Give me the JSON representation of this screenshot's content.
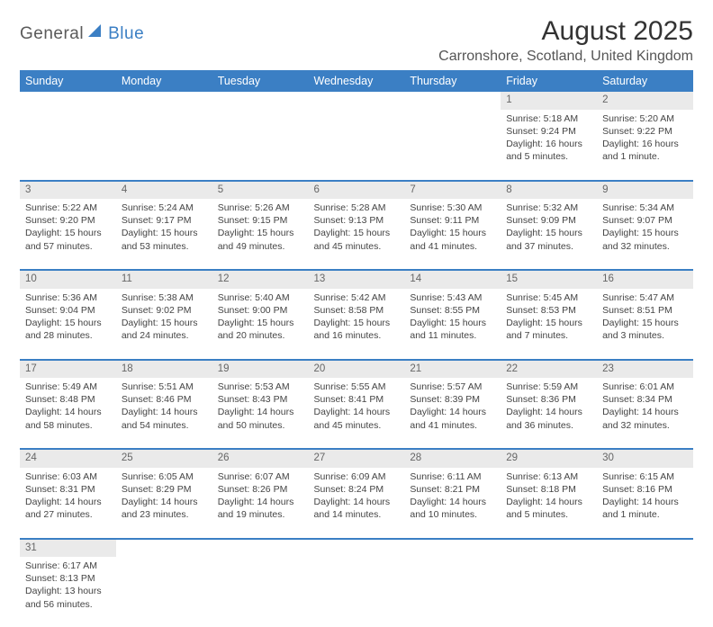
{
  "logo": {
    "text1": "General",
    "text2": "Blue"
  },
  "title": "August 2025",
  "location": "Carronshore, Scotland, United Kingdom",
  "colors": {
    "header_bg": "#3b7fc4",
    "header_text": "#ffffff",
    "daynum_bg": "#eaeaea",
    "row_divider": "#3b7fc4",
    "body_text": "#444444",
    "logo_gray": "#5a5a5a",
    "logo_blue": "#3b7fc4"
  },
  "typography": {
    "title_fontsize": 30,
    "location_fontsize": 16,
    "header_fontsize": 12.5,
    "daynum_fontsize": 11.5,
    "cell_fontsize": 10.5
  },
  "day_headers": [
    "Sunday",
    "Monday",
    "Tuesday",
    "Wednesday",
    "Thursday",
    "Friday",
    "Saturday"
  ],
  "weeks": [
    [
      null,
      null,
      null,
      null,
      null,
      {
        "n": "1",
        "sr": "Sunrise: 5:18 AM",
        "ss": "Sunset: 9:24 PM",
        "dl": "Daylight: 16 hours and 5 minutes."
      },
      {
        "n": "2",
        "sr": "Sunrise: 5:20 AM",
        "ss": "Sunset: 9:22 PM",
        "dl": "Daylight: 16 hours and 1 minute."
      }
    ],
    [
      {
        "n": "3",
        "sr": "Sunrise: 5:22 AM",
        "ss": "Sunset: 9:20 PM",
        "dl": "Daylight: 15 hours and 57 minutes."
      },
      {
        "n": "4",
        "sr": "Sunrise: 5:24 AM",
        "ss": "Sunset: 9:17 PM",
        "dl": "Daylight: 15 hours and 53 minutes."
      },
      {
        "n": "5",
        "sr": "Sunrise: 5:26 AM",
        "ss": "Sunset: 9:15 PM",
        "dl": "Daylight: 15 hours and 49 minutes."
      },
      {
        "n": "6",
        "sr": "Sunrise: 5:28 AM",
        "ss": "Sunset: 9:13 PM",
        "dl": "Daylight: 15 hours and 45 minutes."
      },
      {
        "n": "7",
        "sr": "Sunrise: 5:30 AM",
        "ss": "Sunset: 9:11 PM",
        "dl": "Daylight: 15 hours and 41 minutes."
      },
      {
        "n": "8",
        "sr": "Sunrise: 5:32 AM",
        "ss": "Sunset: 9:09 PM",
        "dl": "Daylight: 15 hours and 37 minutes."
      },
      {
        "n": "9",
        "sr": "Sunrise: 5:34 AM",
        "ss": "Sunset: 9:07 PM",
        "dl": "Daylight: 15 hours and 32 minutes."
      }
    ],
    [
      {
        "n": "10",
        "sr": "Sunrise: 5:36 AM",
        "ss": "Sunset: 9:04 PM",
        "dl": "Daylight: 15 hours and 28 minutes."
      },
      {
        "n": "11",
        "sr": "Sunrise: 5:38 AM",
        "ss": "Sunset: 9:02 PM",
        "dl": "Daylight: 15 hours and 24 minutes."
      },
      {
        "n": "12",
        "sr": "Sunrise: 5:40 AM",
        "ss": "Sunset: 9:00 PM",
        "dl": "Daylight: 15 hours and 20 minutes."
      },
      {
        "n": "13",
        "sr": "Sunrise: 5:42 AM",
        "ss": "Sunset: 8:58 PM",
        "dl": "Daylight: 15 hours and 16 minutes."
      },
      {
        "n": "14",
        "sr": "Sunrise: 5:43 AM",
        "ss": "Sunset: 8:55 PM",
        "dl": "Daylight: 15 hours and 11 minutes."
      },
      {
        "n": "15",
        "sr": "Sunrise: 5:45 AM",
        "ss": "Sunset: 8:53 PM",
        "dl": "Daylight: 15 hours and 7 minutes."
      },
      {
        "n": "16",
        "sr": "Sunrise: 5:47 AM",
        "ss": "Sunset: 8:51 PM",
        "dl": "Daylight: 15 hours and 3 minutes."
      }
    ],
    [
      {
        "n": "17",
        "sr": "Sunrise: 5:49 AM",
        "ss": "Sunset: 8:48 PM",
        "dl": "Daylight: 14 hours and 58 minutes."
      },
      {
        "n": "18",
        "sr": "Sunrise: 5:51 AM",
        "ss": "Sunset: 8:46 PM",
        "dl": "Daylight: 14 hours and 54 minutes."
      },
      {
        "n": "19",
        "sr": "Sunrise: 5:53 AM",
        "ss": "Sunset: 8:43 PM",
        "dl": "Daylight: 14 hours and 50 minutes."
      },
      {
        "n": "20",
        "sr": "Sunrise: 5:55 AM",
        "ss": "Sunset: 8:41 PM",
        "dl": "Daylight: 14 hours and 45 minutes."
      },
      {
        "n": "21",
        "sr": "Sunrise: 5:57 AM",
        "ss": "Sunset: 8:39 PM",
        "dl": "Daylight: 14 hours and 41 minutes."
      },
      {
        "n": "22",
        "sr": "Sunrise: 5:59 AM",
        "ss": "Sunset: 8:36 PM",
        "dl": "Daylight: 14 hours and 36 minutes."
      },
      {
        "n": "23",
        "sr": "Sunrise: 6:01 AM",
        "ss": "Sunset: 8:34 PM",
        "dl": "Daylight: 14 hours and 32 minutes."
      }
    ],
    [
      {
        "n": "24",
        "sr": "Sunrise: 6:03 AM",
        "ss": "Sunset: 8:31 PM",
        "dl": "Daylight: 14 hours and 27 minutes."
      },
      {
        "n": "25",
        "sr": "Sunrise: 6:05 AM",
        "ss": "Sunset: 8:29 PM",
        "dl": "Daylight: 14 hours and 23 minutes."
      },
      {
        "n": "26",
        "sr": "Sunrise: 6:07 AM",
        "ss": "Sunset: 8:26 PM",
        "dl": "Daylight: 14 hours and 19 minutes."
      },
      {
        "n": "27",
        "sr": "Sunrise: 6:09 AM",
        "ss": "Sunset: 8:24 PM",
        "dl": "Daylight: 14 hours and 14 minutes."
      },
      {
        "n": "28",
        "sr": "Sunrise: 6:11 AM",
        "ss": "Sunset: 8:21 PM",
        "dl": "Daylight: 14 hours and 10 minutes."
      },
      {
        "n": "29",
        "sr": "Sunrise: 6:13 AM",
        "ss": "Sunset: 8:18 PM",
        "dl": "Daylight: 14 hours and 5 minutes."
      },
      {
        "n": "30",
        "sr": "Sunrise: 6:15 AM",
        "ss": "Sunset: 8:16 PM",
        "dl": "Daylight: 14 hours and 1 minute."
      }
    ],
    [
      {
        "n": "31",
        "sr": "Sunrise: 6:17 AM",
        "ss": "Sunset: 8:13 PM",
        "dl": "Daylight: 13 hours and 56 minutes."
      },
      null,
      null,
      null,
      null,
      null,
      null
    ]
  ]
}
